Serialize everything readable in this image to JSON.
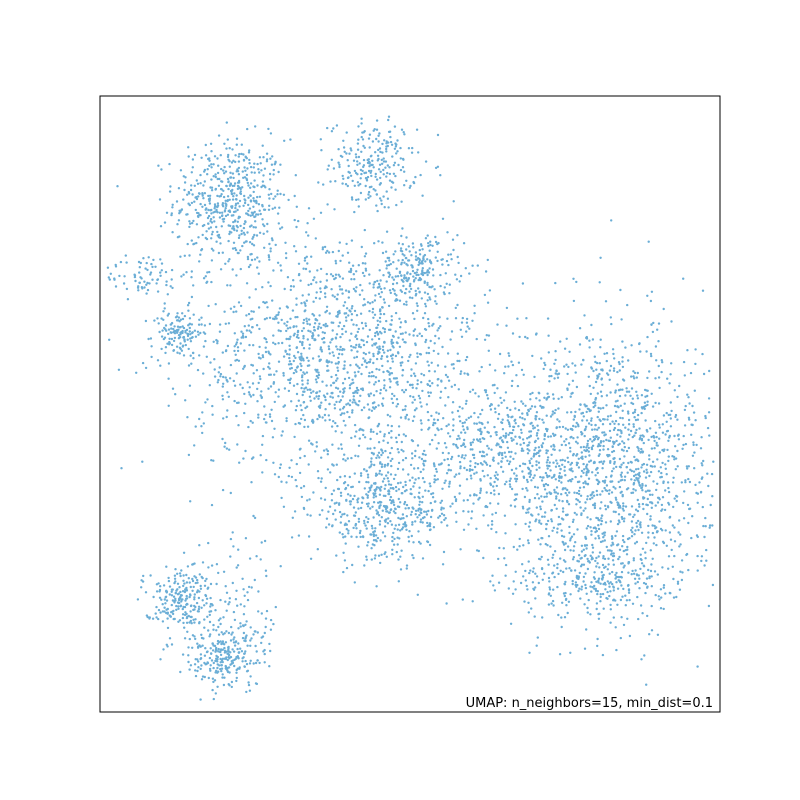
{
  "chart_data": {
    "type": "scatter",
    "title": "",
    "xlabel": "",
    "ylabel": "",
    "grid": false,
    "xticks": [],
    "yticks": [],
    "xlim": [
      0,
      100
    ],
    "ylim": [
      0,
      100
    ],
    "point_color": "#6baed6",
    "annotation": "UMAP: n_neighbors=15, min_dist=0.1",
    "annotation_position": "bottom-right",
    "clusters": [
      {
        "name": "top-left-blob",
        "center": [
          21,
          83
        ],
        "spread": [
          4.5,
          5
        ],
        "count": 520
      },
      {
        "name": "top-small-blob",
        "center": [
          44,
          89
        ],
        "spread": [
          3.5,
          3.5
        ],
        "count": 230
      },
      {
        "name": "left-small-blob",
        "center": [
          12.5,
          61.5
        ],
        "spread": [
          2,
          2
        ],
        "count": 130
      },
      {
        "name": "left-arm",
        "center": [
          7,
          71
        ],
        "spread": [
          3.5,
          1.8
        ],
        "count": 80
      },
      {
        "name": "central-mass",
        "center": [
          39,
          58
        ],
        "spread": [
          12,
          10
        ],
        "count": 1500
      },
      {
        "name": "upper-center-blob",
        "center": [
          51,
          72
        ],
        "spread": [
          3,
          2.5
        ],
        "count": 170
      },
      {
        "name": "lower-center-blob",
        "center": [
          46,
          33
        ],
        "spread": [
          6,
          4.5
        ],
        "count": 480
      },
      {
        "name": "right-bridge",
        "center": [
          63,
          42
        ],
        "spread": [
          6,
          5
        ],
        "count": 350
      },
      {
        "name": "right-mass",
        "center": [
          82,
          40
        ],
        "spread": [
          9,
          11
        ],
        "count": 1500
      },
      {
        "name": "right-lower-tail",
        "center": [
          80,
          22
        ],
        "spread": [
          6,
          3.5
        ],
        "count": 280
      },
      {
        "name": "bottom-left-upper",
        "center": [
          13,
          18.5
        ],
        "spread": [
          3,
          2.5
        ],
        "count": 230
      },
      {
        "name": "bottom-left-lower",
        "center": [
          20,
          9
        ],
        "spread": [
          3.5,
          2.5
        ],
        "count": 250
      },
      {
        "name": "bottom-left-scatter",
        "center": [
          22,
          17
        ],
        "spread": [
          3.5,
          6
        ],
        "count": 90
      }
    ]
  }
}
